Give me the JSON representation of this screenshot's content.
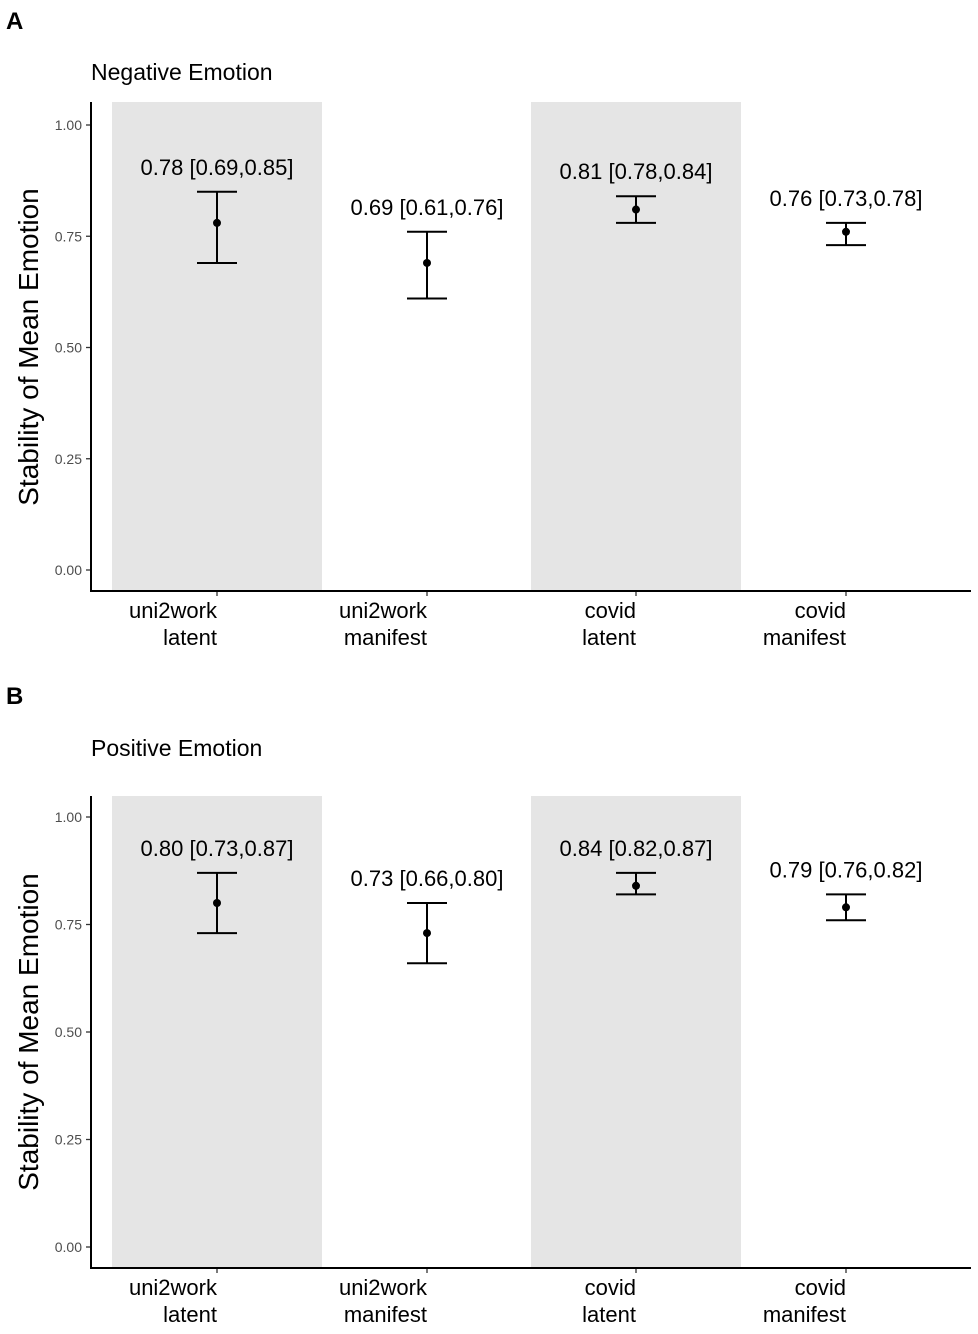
{
  "chart_data": [
    {
      "type": "errorbar",
      "panel_letter": "A",
      "title": "Negative Emotion",
      "xlabel": "",
      "ylabel": "Stability of Mean Emotion",
      "ylim": [
        0,
        1.05
      ],
      "yticks": [
        0.0,
        0.25,
        0.5,
        0.75,
        1.0
      ],
      "ytick_labels": [
        "0.00",
        "0.25",
        "0.50",
        "0.75",
        "1.00"
      ],
      "grid": false,
      "shaded_categories": [
        "uni2work latent",
        "covid latent"
      ],
      "categories": [
        {
          "line1": "uni2work",
          "line2": "latent"
        },
        {
          "line1": "uni2work",
          "line2": "manifest"
        },
        {
          "line1": "covid",
          "line2": "latent"
        },
        {
          "line1": "covid",
          "line2": "manifest"
        }
      ],
      "points": [
        {
          "estimate": 0.78,
          "lower": 0.69,
          "upper": 0.85,
          "label": "0.78 [0.69,0.85]"
        },
        {
          "estimate": 0.69,
          "lower": 0.61,
          "upper": 0.76,
          "label": "0.69 [0.61,0.76]"
        },
        {
          "estimate": 0.81,
          "lower": 0.78,
          "upper": 0.84,
          "label": "0.81 [0.78,0.84]"
        },
        {
          "estimate": 0.76,
          "lower": 0.73,
          "upper": 0.78,
          "label": "0.76 [0.73,0.78]"
        }
      ]
    },
    {
      "type": "errorbar",
      "panel_letter": "B",
      "title": "Positive Emotion",
      "xlabel": "",
      "ylabel": "Stability of Mean Emotion",
      "ylim": [
        0,
        1.05
      ],
      "yticks": [
        0.0,
        0.25,
        0.5,
        0.75,
        1.0
      ],
      "ytick_labels": [
        "0.00",
        "0.25",
        "0.50",
        "0.75",
        "1.00"
      ],
      "grid": false,
      "shaded_categories": [
        "uni2work latent",
        "covid latent"
      ],
      "categories": [
        {
          "line1": "uni2work",
          "line2": "latent"
        },
        {
          "line1": "uni2work",
          "line2": "manifest"
        },
        {
          "line1": "covid",
          "line2": "latent"
        },
        {
          "line1": "covid",
          "line2": "manifest"
        }
      ],
      "points": [
        {
          "estimate": 0.8,
          "lower": 0.73,
          "upper": 0.87,
          "label": "0.80 [0.73,0.87]"
        },
        {
          "estimate": 0.73,
          "lower": 0.66,
          "upper": 0.8,
          "label": "0.73 [0.66,0.80]"
        },
        {
          "estimate": 0.84,
          "lower": 0.82,
          "upper": 0.87,
          "label": "0.84 [0.82,0.87]"
        },
        {
          "estimate": 0.79,
          "lower": 0.76,
          "upper": 0.82,
          "label": "0.79 [0.76,0.82]"
        }
      ]
    }
  ],
  "colors": {
    "band": "#e5e5e5",
    "ink": "#000000",
    "tick_text": "#4d4d4d"
  }
}
